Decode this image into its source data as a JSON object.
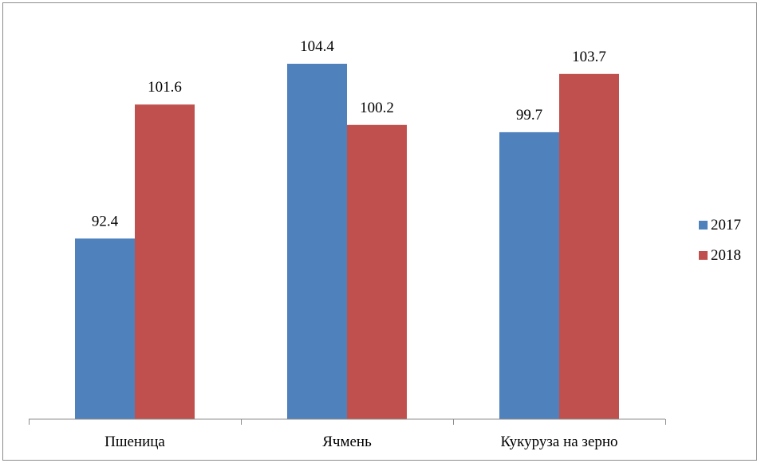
{
  "chart_data": {
    "type": "bar",
    "categories": [
      "Пшеница",
      "Ячмень",
      "Кукуруза на зерно"
    ],
    "series": [
      {
        "name": "2017",
        "color": "#4f81bd",
        "values": [
          92.4,
          104.4,
          99.7
        ]
      },
      {
        "name": "2018",
        "color": "#c0504d",
        "values": [
          101.6,
          100.2,
          103.7
        ]
      }
    ],
    "value_labels": [
      [
        "92.4",
        "104.4",
        "99.7"
      ],
      [
        "101.6",
        "100.2",
        "103.7"
      ]
    ],
    "ylim": [
      80,
      106
    ],
    "grid": false,
    "y_axis_visible": false,
    "legend_position": "right",
    "data_labels": true
  }
}
